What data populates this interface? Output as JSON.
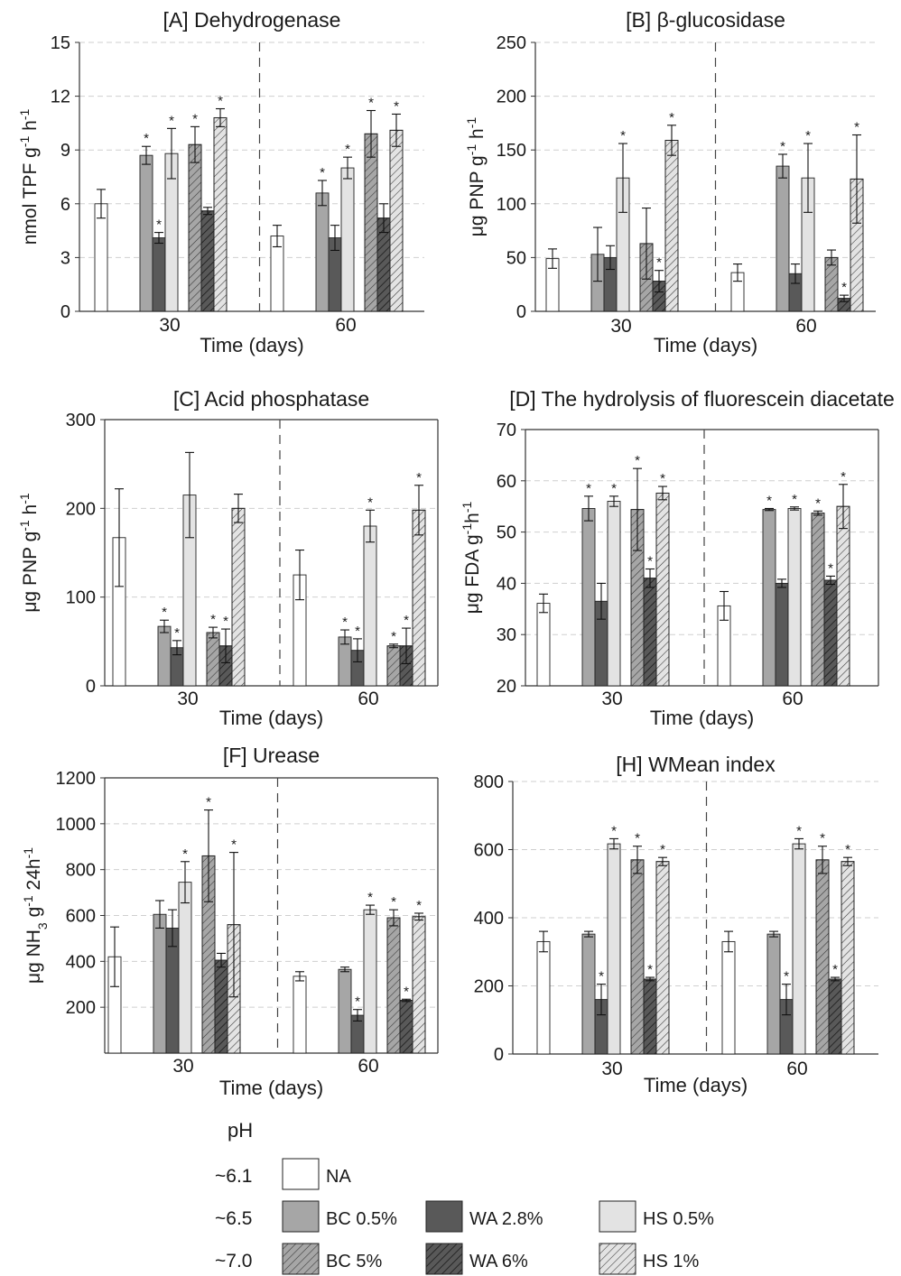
{
  "series_styles": {
    "NA": {
      "fill": "#ffffff",
      "hatch": false
    },
    "BC 0.5%": {
      "fill": "#a6a6a6",
      "hatch": false
    },
    "WA 2.8%": {
      "fill": "#595959",
      "hatch": false
    },
    "HS 0.5%": {
      "fill": "#e3e3e3",
      "hatch": false
    },
    "BC 5%": {
      "fill": "#a6a6a6",
      "hatch": true
    },
    "WA 6%": {
      "fill": "#595959",
      "hatch": true
    },
    "HS 1%": {
      "fill": "#e3e3e3",
      "hatch": true
    }
  },
  "legend": {
    "header": "pH",
    "rows": [
      {
        "ph": "~6.1",
        "items": [
          "NA"
        ]
      },
      {
        "ph": "~6.5",
        "items": [
          "BC 0.5%",
          "WA 2.8%",
          "HS 0.5%"
        ]
      },
      {
        "ph": "~7.0",
        "items": [
          "BC 5%",
          "WA 6%",
          "HS 1%"
        ]
      }
    ]
  },
  "chart_data": [
    {
      "id": "A",
      "type": "bar",
      "title": "[A] Dehydrogenase",
      "ylabel": "nmol TPF g-1 h-1",
      "xlabel": "Time (days)",
      "categories": [
        "30",
        "60"
      ],
      "ylim": [
        0,
        15
      ],
      "yticks": [
        0,
        3,
        6,
        9,
        12,
        15
      ],
      "series": [
        {
          "name": "NA",
          "values": [
            6.0,
            4.2
          ],
          "errors": [
            0.8,
            0.6
          ],
          "sig": [
            false,
            false
          ]
        },
        {
          "name": "BC 0.5%",
          "values": [
            8.7,
            6.6
          ],
          "errors": [
            0.5,
            0.7
          ],
          "sig": [
            true,
            true
          ]
        },
        {
          "name": "WA 2.8%",
          "values": [
            4.1,
            4.1
          ],
          "errors": [
            0.3,
            0.7
          ],
          "sig": [
            true,
            false
          ]
        },
        {
          "name": "HS 0.5%",
          "values": [
            8.8,
            8.0
          ],
          "errors": [
            1.4,
            0.6
          ],
          "sig": [
            true,
            true
          ]
        },
        {
          "name": "BC 5%",
          "values": [
            9.3,
            9.9
          ],
          "errors": [
            1.0,
            1.3
          ],
          "sig": [
            true,
            true
          ]
        },
        {
          "name": "WA 6%",
          "values": [
            5.6,
            5.2
          ],
          "errors": [
            0.2,
            0.8
          ],
          "sig": [
            false,
            false
          ]
        },
        {
          "name": "HS 1%",
          "values": [
            10.8,
            10.1
          ],
          "errors": [
            0.5,
            0.9
          ],
          "sig": [
            true,
            true
          ]
        }
      ]
    },
    {
      "id": "B",
      "type": "bar",
      "title": "[B] β-glucosidase",
      "ylabel": "μg PNP g-1 h-1",
      "xlabel": "Time (days)",
      "categories": [
        "30",
        "60"
      ],
      "ylim": [
        0,
        250
      ],
      "yticks": [
        0,
        50,
        100,
        150,
        200,
        250
      ],
      "series": [
        {
          "name": "NA",
          "values": [
            49,
            36
          ],
          "errors": [
            9,
            8
          ],
          "sig": [
            false,
            false
          ]
        },
        {
          "name": "BC 0.5%",
          "values": [
            53,
            135
          ],
          "errors": [
            25,
            11
          ],
          "sig": [
            false,
            true
          ]
        },
        {
          "name": "WA 2.8%",
          "values": [
            50,
            35
          ],
          "errors": [
            11,
            9
          ],
          "sig": [
            false,
            false
          ]
        },
        {
          "name": "HS 0.5%",
          "values": [
            124,
            124
          ],
          "errors": [
            32,
            32
          ],
          "sig": [
            true,
            true
          ]
        },
        {
          "name": "BC 5%",
          "values": [
            63,
            50
          ],
          "errors": [
            33,
            7
          ],
          "sig": [
            false,
            false
          ]
        },
        {
          "name": "WA 6%",
          "values": [
            28,
            12
          ],
          "errors": [
            10,
            3
          ],
          "sig": [
            true,
            true
          ]
        },
        {
          "name": "HS 1%",
          "values": [
            159,
            123
          ],
          "errors": [
            14,
            41
          ],
          "sig": [
            true,
            true
          ]
        }
      ]
    },
    {
      "id": "C",
      "type": "bar",
      "title": "[C] Acid phosphatase",
      "ylabel": "μg PNP g-1 h-1",
      "xlabel": "Time (days)",
      "categories": [
        "30",
        "60"
      ],
      "ylim": [
        0,
        300
      ],
      "yticks": [
        0,
        100,
        200,
        300
      ],
      "series": [
        {
          "name": "NA",
          "values": [
            167,
            125
          ],
          "errors": [
            55,
            28
          ],
          "sig": [
            false,
            false
          ]
        },
        {
          "name": "BC 0.5%",
          "values": [
            67,
            55
          ],
          "errors": [
            7,
            8
          ],
          "sig": [
            true,
            true
          ]
        },
        {
          "name": "WA 2.8%",
          "values": [
            43,
            40
          ],
          "errors": [
            8,
            13
          ],
          "sig": [
            true,
            true
          ]
        },
        {
          "name": "HS 0.5%",
          "values": [
            215,
            180
          ],
          "errors": [
            48,
            18
          ],
          "sig": [
            false,
            true
          ]
        },
        {
          "name": "BC 5%",
          "values": [
            60,
            45
          ],
          "errors": [
            6,
            2
          ],
          "sig": [
            true,
            true
          ]
        },
        {
          "name": "WA 6%",
          "values": [
            45,
            45
          ],
          "errors": [
            19,
            20
          ],
          "sig": [
            true,
            true
          ]
        },
        {
          "name": "HS 1%",
          "values": [
            200,
            198
          ],
          "errors": [
            16,
            28
          ],
          "sig": [
            false,
            true
          ]
        }
      ]
    },
    {
      "id": "D",
      "type": "bar",
      "title": "[D] The hydrolysis of fluorescein diacetate",
      "ylabel": "μg FDA g-1h-1",
      "xlabel": "Time (days)",
      "categories": [
        "30",
        "60"
      ],
      "ylim": [
        20,
        70
      ],
      "yticks": [
        20,
        30,
        40,
        50,
        60,
        70
      ],
      "series": [
        {
          "name": "NA",
          "values": [
            36.1,
            35.6
          ],
          "errors": [
            1.8,
            2.8
          ],
          "sig": [
            false,
            false
          ]
        },
        {
          "name": "BC 0.5%",
          "values": [
            54.6,
            54.4
          ],
          "errors": [
            2.4,
            0.2
          ],
          "sig": [
            true,
            true
          ]
        },
        {
          "name": "WA 2.8%",
          "values": [
            36.5,
            40.0
          ],
          "errors": [
            3.5,
            0.8
          ],
          "sig": [
            false,
            false
          ]
        },
        {
          "name": "HS 0.5%",
          "values": [
            56.0,
            54.6
          ],
          "errors": [
            1.0,
            0.3
          ],
          "sig": [
            true,
            true
          ]
        },
        {
          "name": "BC 5%",
          "values": [
            54.4,
            53.7
          ],
          "errors": [
            8.0,
            0.4
          ],
          "sig": [
            true,
            true
          ]
        },
        {
          "name": "WA 6%",
          "values": [
            41.0,
            40.6
          ],
          "errors": [
            1.8,
            0.8
          ],
          "sig": [
            true,
            true
          ]
        },
        {
          "name": "HS 1%",
          "values": [
            57.6,
            55.0
          ],
          "errors": [
            1.3,
            4.3
          ],
          "sig": [
            true,
            true
          ]
        }
      ]
    },
    {
      "id": "F",
      "type": "bar",
      "title": "[F] Urease",
      "ylabel": "μg NH3 g-1 24h-1",
      "xlabel": "Time (days)",
      "categories": [
        "30",
        "60"
      ],
      "ylim": [
        0,
        1200
      ],
      "yticks": [
        200,
        400,
        600,
        800,
        1000,
        1200
      ],
      "series": [
        {
          "name": "NA",
          "values": [
            420,
            335
          ],
          "errors": [
            130,
            20
          ],
          "sig": [
            false,
            false
          ]
        },
        {
          "name": "BC 0.5%",
          "values": [
            605,
            365
          ],
          "errors": [
            60,
            10
          ],
          "sig": [
            false,
            false
          ]
        },
        {
          "name": "WA 2.8%",
          "values": [
            545,
            165
          ],
          "errors": [
            80,
            25
          ],
          "sig": [
            false,
            true
          ]
        },
        {
          "name": "HS 0.5%",
          "values": [
            745,
            625
          ],
          "errors": [
            90,
            20
          ],
          "sig": [
            true,
            true
          ]
        },
        {
          "name": "BC 5%",
          "values": [
            860,
            590
          ],
          "errors": [
            200,
            35
          ],
          "sig": [
            true,
            true
          ]
        },
        {
          "name": "WA 6%",
          "values": [
            405,
            230
          ],
          "errors": [
            30,
            5
          ],
          "sig": [
            false,
            true
          ]
        },
        {
          "name": "HS 1%",
          "values": [
            560,
            595
          ],
          "errors": [
            315,
            15
          ],
          "sig": [
            true,
            true
          ]
        }
      ]
    },
    {
      "id": "H",
      "type": "bar",
      "title": "[H] WMean index",
      "ylabel": "",
      "xlabel": "Time (days)",
      "categories": [
        "30",
        "60"
      ],
      "ylim": [
        0,
        800
      ],
      "yticks": [
        0,
        200,
        400,
        600,
        800
      ],
      "series": [
        {
          "name": "NA",
          "values": [
            330,
            330
          ],
          "errors": [
            30,
            30
          ],
          "sig": [
            false,
            false
          ]
        },
        {
          "name": "BC 0.5%",
          "values": [
            352,
            352
          ],
          "errors": [
            8,
            8
          ],
          "sig": [
            false,
            false
          ]
        },
        {
          "name": "WA 2.8%",
          "values": [
            160,
            160
          ],
          "errors": [
            45,
            45
          ],
          "sig": [
            true,
            true
          ]
        },
        {
          "name": "HS 0.5%",
          "values": [
            617,
            617
          ],
          "errors": [
            15,
            15
          ],
          "sig": [
            true,
            true
          ]
        },
        {
          "name": "BC 5%",
          "values": [
            570,
            570
          ],
          "errors": [
            40,
            40
          ],
          "sig": [
            true,
            true
          ]
        },
        {
          "name": "WA 6%",
          "values": [
            220,
            220
          ],
          "errors": [
            5,
            5
          ],
          "sig": [
            true,
            true
          ]
        },
        {
          "name": "HS 1%",
          "values": [
            565,
            565
          ],
          "errors": [
            12,
            12
          ],
          "sig": [
            true,
            true
          ]
        }
      ]
    }
  ]
}
